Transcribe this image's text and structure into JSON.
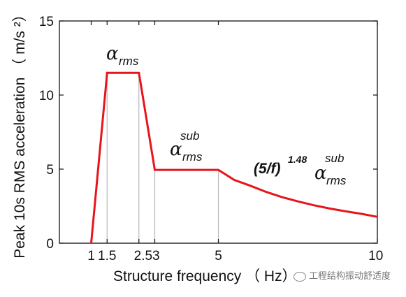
{
  "chart_data": {
    "type": "line",
    "title": "",
    "xlabel": "Structure frequency （ Hz）",
    "ylabel": "Peak 10s RMS acceleration （ m/s ²）",
    "xlim": [
      0,
      10
    ],
    "ylim": [
      0,
      15
    ],
    "grid": false,
    "xticks": [
      "1",
      "1.5",
      "2.53",
      "5",
      "10"
    ],
    "yticks": [
      "0",
      "5",
      "10",
      "15"
    ],
    "series": [
      {
        "color": "#e8141b",
        "x": [
          1.0,
          1.5,
          2.5,
          3.0,
          5.0,
          5.5,
          6.0,
          6.5,
          7.0,
          7.5,
          8.0,
          8.5,
          9.0,
          9.5,
          10.0
        ],
        "y": [
          0,
          11.5,
          11.5,
          4.95,
          4.95,
          4.27,
          3.88,
          3.46,
          3.11,
          2.82,
          2.56,
          2.34,
          2.15,
          1.98,
          1.78
        ]
      }
    ],
    "vertical_guides": [
      1.5,
      2.5,
      3.0,
      5.0
    ],
    "annotations": {
      "alpha": "α",
      "rms": "rms",
      "sub": "sub",
      "formula_base": "(5/f)",
      "formula_exp": "1.48"
    }
  },
  "watermark": "工程结构振动舒适度"
}
